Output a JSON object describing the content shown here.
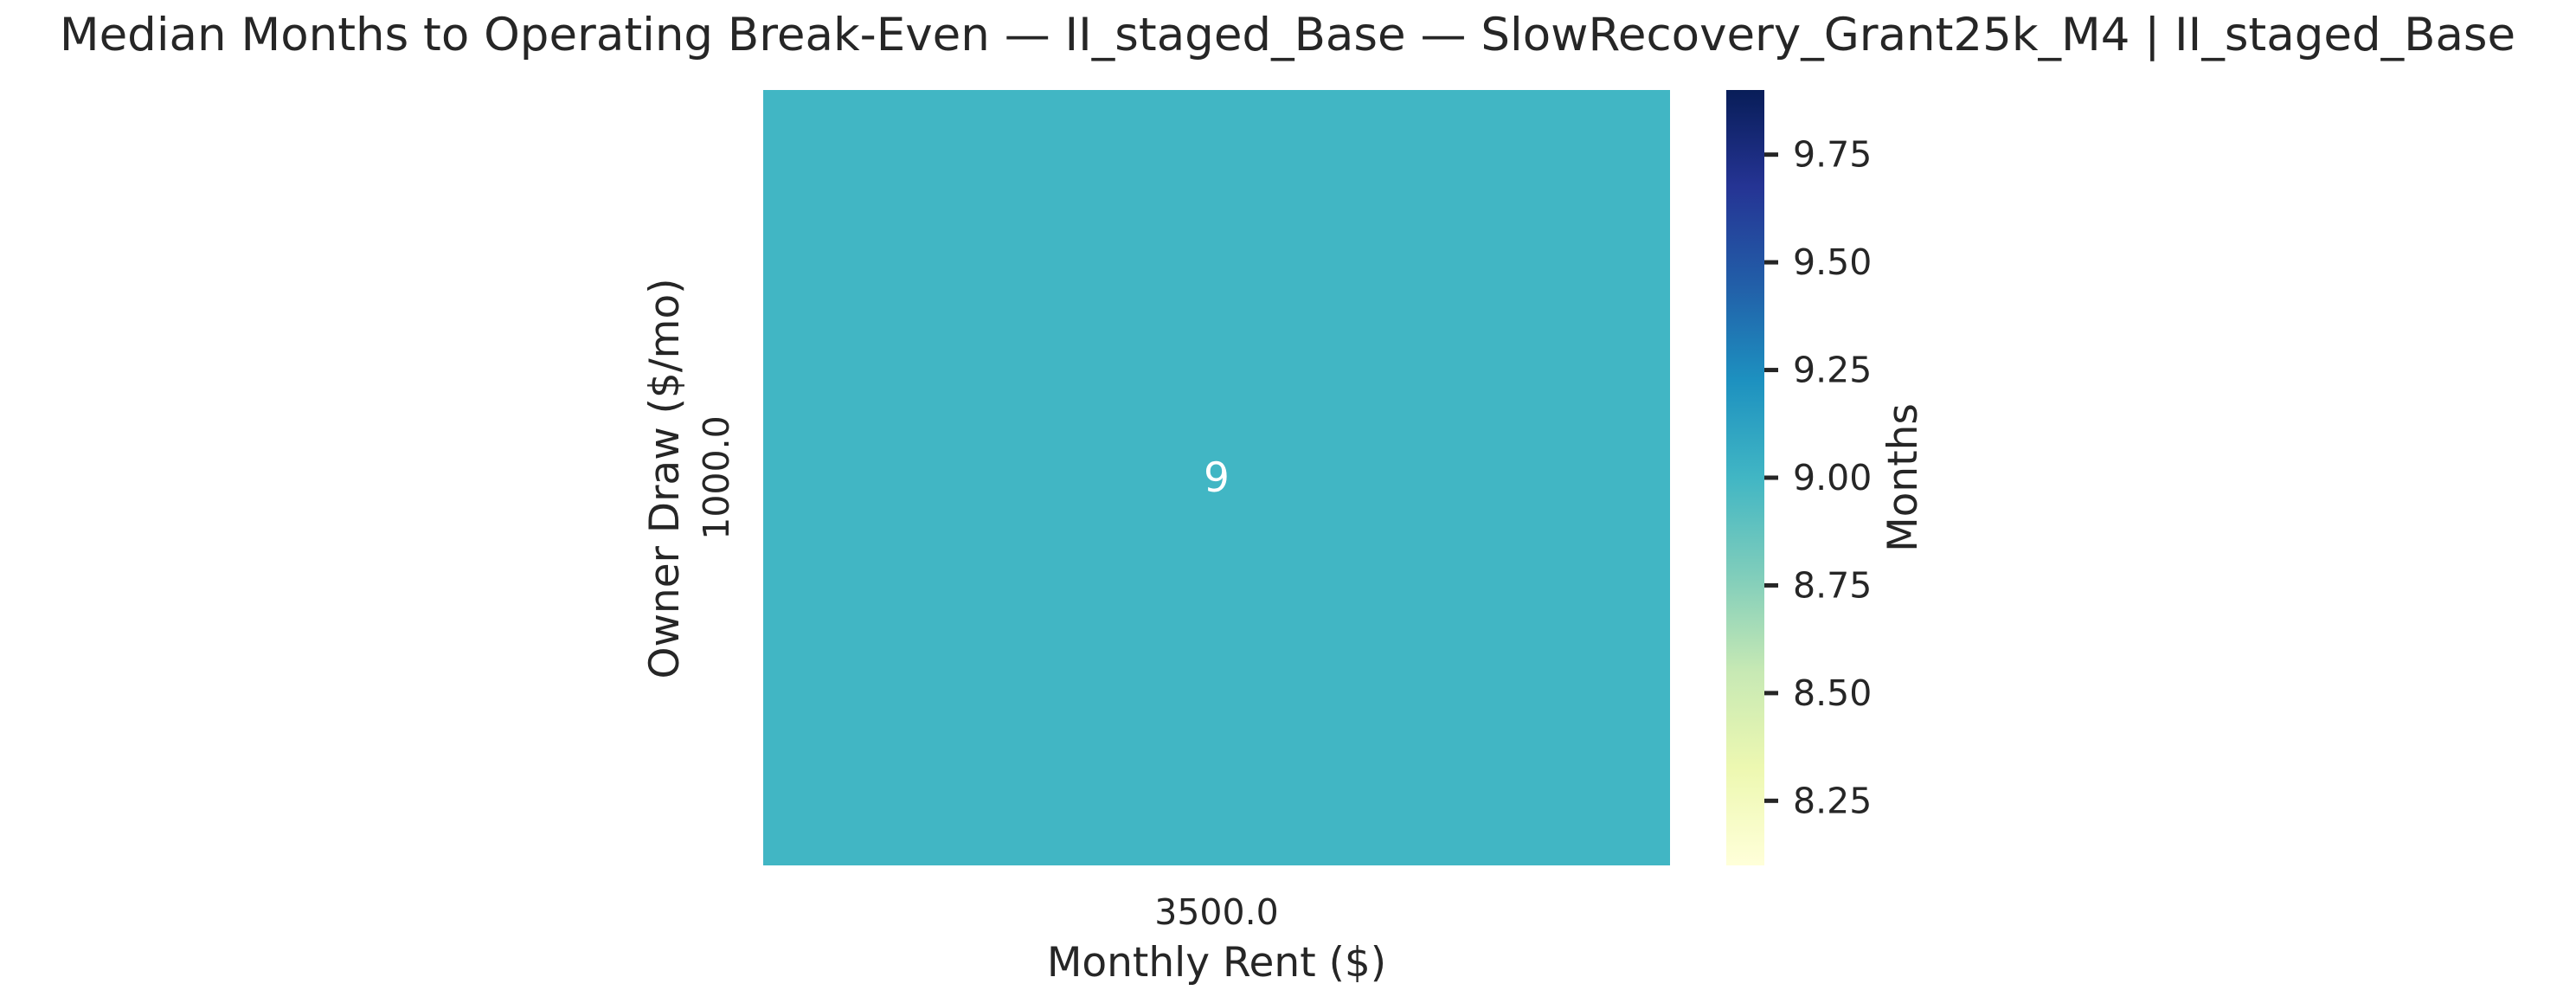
{
  "chart_data": {
    "type": "heatmap",
    "title": "Median Months to Operating Break-Even — II_staged_Base — SlowRecovery_Grant25k_M4 | II_staged_Base",
    "xlabel": "Monthly Rent ($)",
    "ylabel": "Owner Draw ($/mo)",
    "x_categories": [
      "3500.0"
    ],
    "y_categories": [
      "1000.0"
    ],
    "values": [
      [
        9
      ]
    ],
    "cell_annotations": [
      [
        "9"
      ]
    ],
    "colormap": "YlGnBu",
    "colorbar": {
      "label": "Months",
      "vmin": 8.1,
      "vmax": 9.9,
      "ticks": [
        "8.25",
        "8.50",
        "8.75",
        "9.00",
        "9.25",
        "9.50",
        "9.75"
      ],
      "gradient_colors": [
        "#ffffd9",
        "#edf8b1",
        "#c7e9b4",
        "#7fcdbb",
        "#41b6c4",
        "#1d91c0",
        "#225ea8",
        "#253494",
        "#081d58"
      ]
    },
    "cell_color": "#41b6c4",
    "annotation_color": "#ffffff",
    "grid": false
  }
}
